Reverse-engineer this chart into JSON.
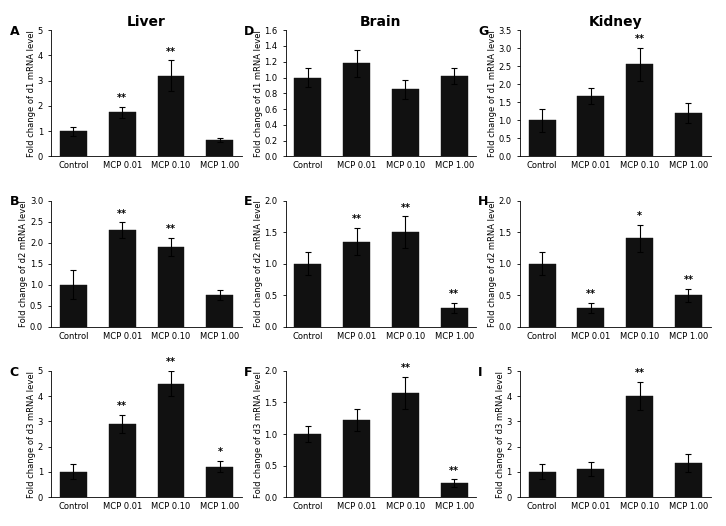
{
  "categories": [
    "Control",
    "MCP 0.01",
    "MCP 0.10",
    "MCP 1.00"
  ],
  "panels": {
    "A": {
      "title": "Liver",
      "show_title": true,
      "ylabel": "Fold change of d1 mRNA level",
      "ylim": [
        0,
        5
      ],
      "yticks": [
        0,
        1,
        2,
        3,
        4,
        5
      ],
      "values": [
        1.0,
        1.75,
        3.2,
        0.65
      ],
      "errors": [
        0.18,
        0.22,
        0.6,
        0.08
      ],
      "sig": [
        "",
        "**",
        "**",
        ""
      ]
    },
    "B": {
      "title": "",
      "show_title": false,
      "ylabel": "Fold change of d2 mRNA level",
      "ylim": [
        0,
        3.0
      ],
      "yticks": [
        0.0,
        0.5,
        1.0,
        1.5,
        2.0,
        2.5,
        3.0
      ],
      "values": [
        1.0,
        2.3,
        1.9,
        0.75
      ],
      "errors": [
        0.35,
        0.18,
        0.22,
        0.12
      ],
      "sig": [
        "",
        "**",
        "**",
        ""
      ]
    },
    "C": {
      "title": "",
      "show_title": false,
      "ylabel": "Fold change of d3 mRNA level",
      "ylim": [
        0,
        5
      ],
      "yticks": [
        0,
        1,
        2,
        3,
        4,
        5
      ],
      "values": [
        1.0,
        2.9,
        4.5,
        1.2
      ],
      "errors": [
        0.3,
        0.35,
        0.5,
        0.22
      ],
      "sig": [
        "",
        "**",
        "**",
        "*"
      ]
    },
    "D": {
      "title": "Brain",
      "show_title": true,
      "ylabel": "Fold change of d1 mRNA level",
      "ylim": [
        0.0,
        1.6
      ],
      "yticks": [
        0.0,
        0.2,
        0.4,
        0.6,
        0.8,
        1.0,
        1.2,
        1.4,
        1.6
      ],
      "values": [
        1.0,
        1.18,
        0.85,
        1.02
      ],
      "errors": [
        0.12,
        0.17,
        0.12,
        0.1
      ],
      "sig": [
        "",
        "",
        "",
        ""
      ]
    },
    "E": {
      "title": "",
      "show_title": false,
      "ylabel": "Fold change of d2 mRNA level",
      "ylim": [
        0.0,
        2.0
      ],
      "yticks": [
        0.0,
        0.5,
        1.0,
        1.5,
        2.0
      ],
      "values": [
        1.0,
        1.35,
        1.5,
        0.3
      ],
      "errors": [
        0.18,
        0.22,
        0.25,
        0.08
      ],
      "sig": [
        "",
        "**",
        "**",
        "**"
      ]
    },
    "F": {
      "title": "",
      "show_title": false,
      "ylabel": "Fold change of d3 mRNA level",
      "ylim": [
        0.0,
        2.0
      ],
      "yticks": [
        0.0,
        0.5,
        1.0,
        1.5,
        2.0
      ],
      "values": [
        1.0,
        1.22,
        1.65,
        0.22
      ],
      "errors": [
        0.12,
        0.18,
        0.25,
        0.06
      ],
      "sig": [
        "",
        "",
        "**",
        "**"
      ]
    },
    "G": {
      "title": "Kidney",
      "show_title": true,
      "ylabel": "Fold change of d1 mRNA level",
      "ylim": [
        0.0,
        3.5
      ],
      "yticks": [
        0.0,
        0.5,
        1.0,
        1.5,
        2.0,
        2.5,
        3.0,
        3.5
      ],
      "values": [
        1.0,
        1.68,
        2.55,
        1.2
      ],
      "errors": [
        0.32,
        0.22,
        0.45,
        0.28
      ],
      "sig": [
        "",
        "",
        "**",
        ""
      ]
    },
    "H": {
      "title": "",
      "show_title": false,
      "ylabel": "Fold change of d2 mRNA level",
      "ylim": [
        0.0,
        2.0
      ],
      "yticks": [
        0.0,
        0.5,
        1.0,
        1.5,
        2.0
      ],
      "values": [
        1.0,
        0.3,
        1.4,
        0.5
      ],
      "errors": [
        0.18,
        0.08,
        0.22,
        0.1
      ],
      "sig": [
        "",
        "**",
        "*",
        "**"
      ]
    },
    "I": {
      "title": "",
      "show_title": false,
      "ylabel": "Fold change of d3 mRNA level",
      "ylim": [
        0,
        5
      ],
      "yticks": [
        0,
        1,
        2,
        3,
        4,
        5
      ],
      "values": [
        1.0,
        1.1,
        4.0,
        1.35
      ],
      "errors": [
        0.3,
        0.28,
        0.55,
        0.35
      ],
      "sig": [
        "",
        "",
        "**",
        ""
      ]
    }
  },
  "layout": [
    [
      "A",
      "D",
      "G"
    ],
    [
      "B",
      "E",
      "H"
    ],
    [
      "C",
      "F",
      "I"
    ]
  ],
  "bar_color": "#111111",
  "bar_width": 0.55,
  "sig_fontsize": 7,
  "ylabel_fontsize": 6,
  "title_fontsize": 10,
  "panel_label_fontsize": 9,
  "tick_fontsize": 6
}
